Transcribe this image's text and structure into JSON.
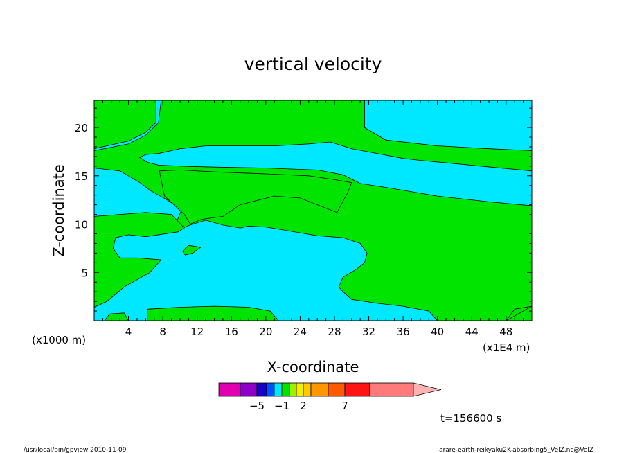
{
  "chart_data": {
    "type": "heatmap",
    "title": "vertical velocity",
    "xlabel": "X-coordinate",
    "ylabel": "Z-coordinate",
    "x_axis_unit": "(x1E4 m)",
    "y_axis_unit": "(x1000 m)",
    "xlim": [
      0,
      51
    ],
    "ylim": [
      0,
      22.8
    ],
    "x_ticks": [
      4,
      8,
      12,
      16,
      20,
      24,
      28,
      32,
      36,
      40,
      44,
      48
    ],
    "y_ticks": [
      5,
      10,
      15,
      20
    ],
    "colorbar": {
      "levels": [
        -8,
        -6,
        -5,
        -3,
        -2,
        -1,
        0,
        1,
        2,
        3,
        5,
        7,
        10,
        15,
        20
      ],
      "colors": [
        "#e000b0",
        "#8c00c8",
        "#1400c8",
        "#0050ff",
        "#00e8ff",
        "#00e400",
        "#a0f000",
        "#f0f000",
        "#ffc800",
        "#ff9600",
        "#ff5a00",
        "#ff1414",
        "#ff7a7a",
        "#ffb4b4"
      ],
      "tick_labels": [
        {
          "value": -5,
          "label": "−5"
        },
        {
          "value": -1,
          "label": "−1"
        },
        {
          "value": 2,
          "label": "2"
        },
        {
          "value": 7,
          "label": "7"
        }
      ]
    },
    "regions": [
      {
        "level": "0 to 1",
        "color": "#00e400",
        "polygons": [
          [
            [
              7.8,
              22.8
            ],
            [
              31.5,
              22.8
            ],
            [
              31.5,
              20.0
            ],
            [
              34,
              18.7
            ],
            [
              40,
              18.1
            ],
            [
              46,
              17.8
            ],
            [
              51,
              17.6
            ],
            [
              51,
              15.5
            ],
            [
              45,
              16.0
            ],
            [
              38,
              16.6
            ],
            [
              36,
              16.8
            ],
            [
              30,
              17.8
            ],
            [
              27.5,
              18.5
            ],
            [
              25,
              18.3
            ],
            [
              21,
              18.1
            ],
            [
              17,
              18.1
            ],
            [
              13,
              18.1
            ],
            [
              10,
              17.8
            ],
            [
              7.5,
              17.3
            ],
            [
              6,
              17.2
            ],
            [
              5.3,
              16.9
            ],
            [
              6.2,
              16.4
            ],
            [
              7.5,
              16.1
            ],
            [
              10,
              16.0
            ],
            [
              14,
              15.9
            ],
            [
              20,
              15.8
            ],
            [
              26,
              15.6
            ],
            [
              29,
              15.1
            ],
            [
              31,
              14.2
            ],
            [
              34,
              13.8
            ],
            [
              40,
              12.9
            ],
            [
              46,
              12.3
            ],
            [
              51,
              11.9
            ],
            [
              51,
              0
            ],
            [
              48,
              0
            ],
            [
              49,
              1.2
            ],
            [
              51,
              1.5
            ],
            [
              48,
              0
            ],
            [
              40,
              0
            ],
            [
              39,
              1
            ],
            [
              36,
              1.5
            ],
            [
              33,
              1.8
            ],
            [
              30,
              2.2
            ],
            [
              29,
              3.0
            ],
            [
              28.5,
              3.5
            ],
            [
              29,
              4.5
            ],
            [
              30.5,
              5.3
            ],
            [
              31.5,
              6.0
            ],
            [
              31.8,
              7.0
            ],
            [
              31,
              8.0
            ],
            [
              29,
              8.6
            ],
            [
              26,
              8.8
            ],
            [
              24,
              9.1
            ],
            [
              22,
              9.4
            ],
            [
              20,
              9.7
            ],
            [
              18,
              9.8
            ],
            [
              17,
              9.6
            ],
            [
              15,
              9.9
            ],
            [
              13,
              10.4
            ],
            [
              11.5,
              10.0
            ],
            [
              10,
              9.5
            ],
            [
              9.5,
              10.0
            ],
            [
              10.2,
              11.5
            ],
            [
              8.5,
              12.5
            ],
            [
              7.5,
              13.0
            ],
            [
              6.5,
              13.5
            ],
            [
              5.5,
              14.2
            ],
            [
              3,
              15.5
            ],
            [
              0,
              15.8
            ],
            [
              0,
              17.6
            ],
            [
              4,
              18.3
            ],
            [
              6,
              19.2
            ],
            [
              7.5,
              20.5
            ]
          ],
          [
            [
              0,
              10.8
            ],
            [
              3,
              11.0
            ],
            [
              6,
              11.2
            ],
            [
              9,
              11.0
            ],
            [
              10.5,
              9.6
            ],
            [
              9.8,
              9.2
            ],
            [
              6,
              8.7
            ],
            [
              4,
              8.9
            ],
            [
              2.5,
              8.6
            ],
            [
              2.2,
              7.5
            ],
            [
              3,
              6.5
            ],
            [
              5,
              6.5
            ],
            [
              7.8,
              6.3
            ],
            [
              6.5,
              5.0
            ],
            [
              3.5,
              3.5
            ],
            [
              1.5,
              2.0
            ],
            [
              0,
              1.4
            ]
          ],
          [
            [
              7.2,
              22.8
            ],
            [
              7.2,
              20.5
            ],
            [
              6,
              19.5
            ],
            [
              4,
              18.6
            ],
            [
              0,
              17.8
            ],
            [
              0,
              22.8
            ]
          ],
          [
            [
              6.2,
              0
            ],
            [
              6.2,
              1.2
            ],
            [
              10,
              1.4
            ],
            [
              14,
              1.5
            ],
            [
              18,
              1.4
            ],
            [
              20.5,
              1.0
            ],
            [
              21.5,
              0
            ]
          ],
          [
            [
              1.2,
              0
            ],
            [
              1.8,
              0.7
            ],
            [
              3.5,
              0.8
            ],
            [
              4,
              0
            ]
          ],
          [
            [
              10.3,
              7.2
            ],
            [
              11,
              7.8
            ],
            [
              12.4,
              7.6
            ],
            [
              11.5,
              7.0
            ],
            [
              10.6,
              6.8
            ]
          ],
          [
            [
              7.6,
              15.5
            ],
            [
              8.2,
              12.9
            ],
            [
              10.5,
              11.0
            ],
            [
              11.2,
              10.0
            ],
            [
              12.5,
              10.5
            ],
            [
              15,
              10.8
            ],
            [
              17,
              12.0
            ],
            [
              21,
              12.9
            ],
            [
              24,
              12.7
            ],
            [
              26,
              12.0
            ],
            [
              28.3,
              11.2
            ],
            [
              29.5,
              13.2
            ],
            [
              30,
              14.3
            ],
            [
              28,
              14.6
            ],
            [
              25,
              15.0
            ],
            [
              20,
              15.2
            ],
            [
              14,
              15.4
            ],
            [
              10,
              15.6
            ]
          ]
        ]
      }
    ]
  },
  "footer": {
    "time_label": "t=156600 s",
    "left_note": "/usr/local/bin/gpview  2010-11-09",
    "right_note": "arare-earth-reikyaku2K-absorbing5_VelZ.nc@VelZ"
  }
}
